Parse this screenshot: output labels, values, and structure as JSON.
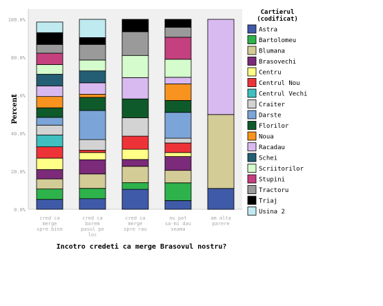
{
  "chart_data": {
    "type": "bar",
    "stacked": true,
    "title": "",
    "xlabel": "Incotro credeti ca merge Brasovul nostru?",
    "ylabel": "Percent",
    "ylim": [
      0,
      100
    ],
    "grid": false,
    "legend_position": "right",
    "legend_title_lines": [
      "Cartierul",
      "(codificat)"
    ],
    "y_ticks": [
      {
        "value": 0,
        "label": "0.0%"
      },
      {
        "value": 20,
        "label": "20.0%"
      },
      {
        "value": 40,
        "label": "40.0%"
      },
      {
        "value": 60,
        "label": "60.0%"
      },
      {
        "value": 80,
        "label": "80.0%"
      },
      {
        "value": 100,
        "label": "100.0%"
      }
    ],
    "categories": [
      {
        "lines": [
          "cred ca",
          "merge",
          "spre bine"
        ]
      },
      {
        "lines": [
          "cred ca",
          "barem",
          "pasul pe",
          "loc"
        ]
      },
      {
        "lines": [
          "cred ca",
          "merge",
          "spre rau"
        ]
      },
      {
        "lines": [
          "nu pot",
          "sa-mi dau",
          "seama"
        ]
      },
      {
        "lines": [
          "am alta",
          "parere"
        ]
      }
    ],
    "series": [
      {
        "name": "Astra",
        "color": "#3f5aa8",
        "values": [
          5.2,
          5.6,
          10.5,
          4.6,
          11.0
        ]
      },
      {
        "name": "Bartolomeu",
        "color": "#2eb24b",
        "values": [
          5.5,
          5.4,
          3.5,
          9.3,
          0
        ]
      },
      {
        "name": "Blumana",
        "color": "#d4cc97",
        "values": [
          5.3,
          7.6,
          8.6,
          6.6,
          38.9
        ]
      },
      {
        "name": "Brasovechi",
        "color": "#7c2a7a",
        "values": [
          4.9,
          7.5,
          3.6,
          7.3,
          0
        ]
      },
      {
        "name": "Centru",
        "color": "#ffff88",
        "values": [
          6.0,
          3.8,
          5.4,
          2.1,
          0
        ]
      },
      {
        "name": "Centrul Nou",
        "color": "#ee3338",
        "values": [
          6.0,
          1.2,
          6.9,
          5.0,
          0
        ]
      },
      {
        "name": "Centrul Vechi",
        "color": "#3fbfbf",
        "values": [
          6.2,
          0,
          0,
          0,
          0
        ]
      },
      {
        "name": "Craiter",
        "color": "#d3d3d3",
        "values": [
          5.2,
          5.6,
          9.7,
          2.5,
          0
        ]
      },
      {
        "name": "Darste",
        "color": "#7ba5d8",
        "values": [
          4.1,
          15.3,
          0,
          13.6,
          0
        ]
      },
      {
        "name": "Florilor",
        "color": "#0f5a2b",
        "values": [
          5.0,
          6.9,
          9.9,
          6.3,
          0
        ]
      },
      {
        "name": "Noua",
        "color": "#f7931e",
        "values": [
          6.0,
          1.7,
          0,
          8.7,
          0
        ]
      },
      {
        "name": "Racadau",
        "color": "#d9baf0",
        "values": [
          5.6,
          6.0,
          11.2,
          3.5,
          50.1
        ]
      },
      {
        "name": "Schei",
        "color": "#235e74",
        "values": [
          6.1,
          6.3,
          0,
          0,
          0
        ]
      },
      {
        "name": "Scriitorilor",
        "color": "#d4fccc",
        "values": [
          5.1,
          5.7,
          11.7,
          9.5,
          0
        ]
      },
      {
        "name": "Stupini",
        "color": "#c4407e",
        "values": [
          6.0,
          0,
          0,
          11.6,
          0
        ]
      },
      {
        "name": "Tractoru",
        "color": "#9a9a9a",
        "values": [
          4.6,
          8.2,
          12.5,
          5.2,
          0
        ]
      },
      {
        "name": "Triaj",
        "color": "#000000",
        "values": [
          6.2,
          3.6,
          6.5,
          4.2,
          0
        ]
      },
      {
        "name": "Usina 2",
        "color": "#bfeaf0",
        "values": [
          5.6,
          9.6,
          0,
          0,
          0
        ]
      }
    ]
  }
}
